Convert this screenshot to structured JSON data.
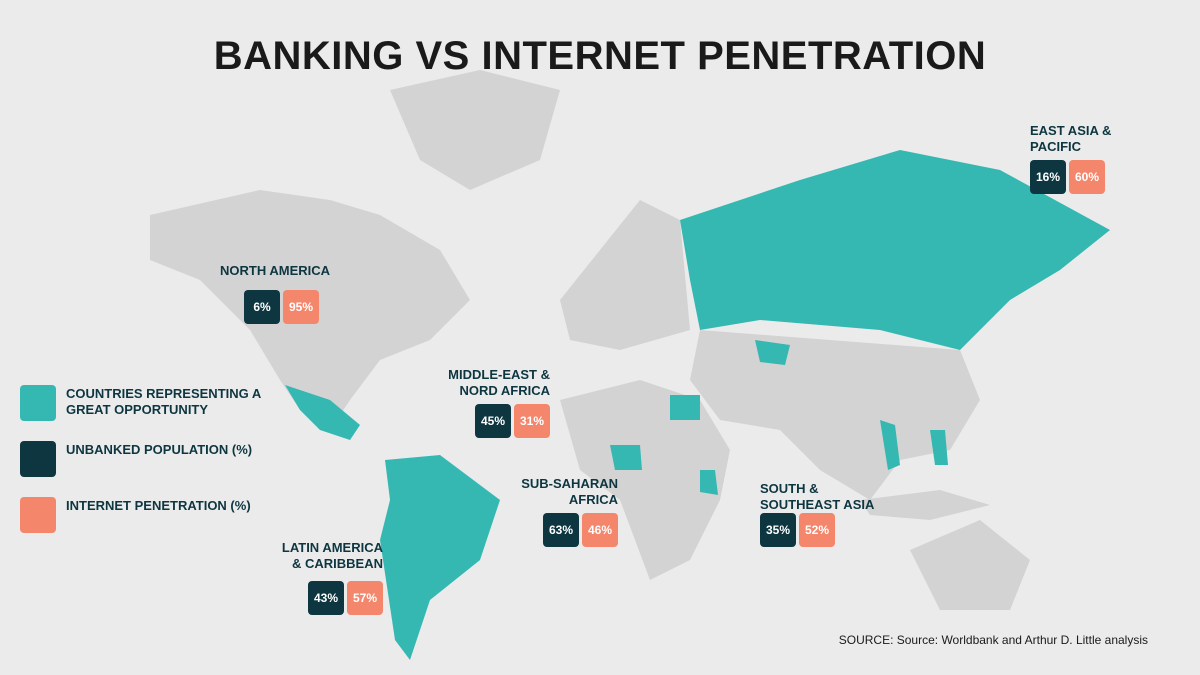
{
  "title": "BANKING VS INTERNET PENETRATION",
  "regions": [
    {
      "name": [
        "NORTH AMERICA"
      ],
      "unbanked": "6%",
      "internet": "95%"
    },
    {
      "name": [
        "MIDDLE-EAST &",
        "NORD AFRICA"
      ],
      "unbanked": "45%",
      "internet": "31%"
    },
    {
      "name": [
        "SUB-SAHARAN",
        "AFRICA"
      ],
      "unbanked": "63%",
      "internet": "46%"
    },
    {
      "name": [
        "LATIN AMERICA",
        "& CARIBBEAN"
      ],
      "unbanked": "43%",
      "internet": "57%"
    },
    {
      "name": [
        "SOUTH &",
        "SOUTHEAST ASIA"
      ],
      "unbanked": "35%",
      "internet": "52%"
    },
    {
      "name": [
        "EAST ASIA &",
        "PACIFIC"
      ],
      "unbanked": "16%",
      "internet": "60%"
    }
  ],
  "legend": [
    {
      "label": "COUNTRIES REPRESENTING A GREAT OPPORTUNITY"
    },
    {
      "label": "UNBANKED POPULATION (%)"
    },
    {
      "label": "INTERNET PENETRATION (%)"
    }
  ],
  "source": "SOURCE: Source: Worldbank and Arthur D. Little analysis"
}
